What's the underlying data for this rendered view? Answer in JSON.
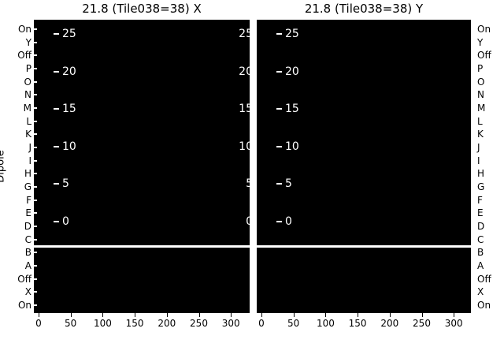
{
  "figure": {
    "background_color": "#ffffff",
    "panel_color": "#000000",
    "axis_text_color": "#000000",
    "inner_text_color": "#ffffff"
  },
  "chart_data": {
    "type": "heatmap",
    "panels": [
      {
        "title": "21.8 (Tile038=38) X"
      },
      {
        "title": "21.8 (Tile038=38) Y"
      }
    ],
    "ylabel": "Dipole",
    "y_categories": [
      "On",
      "Y",
      "Off",
      "P",
      "O",
      "N",
      "M",
      "L",
      "K",
      "J",
      "I",
      "H",
      "G",
      "F",
      "E",
      "D",
      "C",
      "B",
      "A",
      "Off",
      "X",
      "On"
    ],
    "y_labels_mirrored_on_right": true,
    "separator_after_category": "C",
    "x_ticks": [
      0,
      50,
      100,
      150,
      200,
      250,
      300
    ],
    "colorbar_ticks": [
      25,
      20,
      15,
      10,
      5,
      0
    ],
    "colorbar_position": "inset at left inside each panel; clipped duplicate tick labels at right edge of left panel",
    "cell_values": "uniformly black (no visible variation); white separator row between 'C' and 'B' rows",
    "grid": false,
    "legend": null
  }
}
